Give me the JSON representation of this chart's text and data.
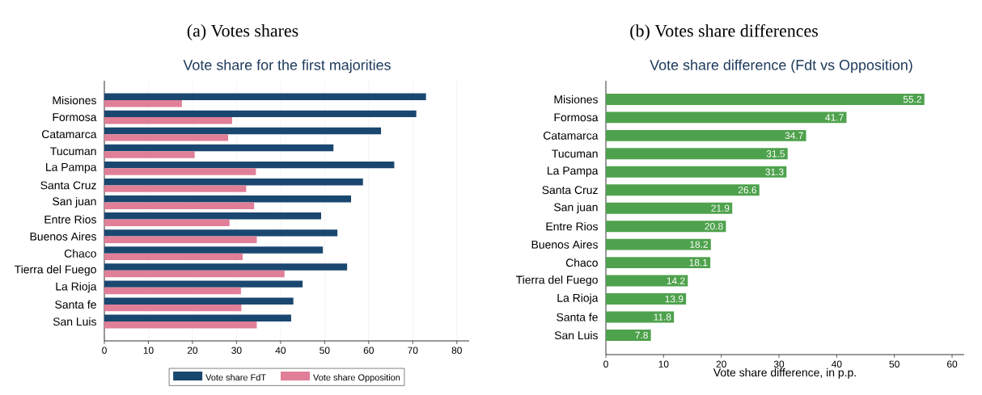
{
  "chart_data": [
    {
      "type": "bar",
      "orientation": "horizontal",
      "title": "(a) Votes shares",
      "subtitle": "Vote share for the first majorities",
      "categories": [
        "Misiones",
        "Formosa",
        "Catamarca",
        "Tucuman",
        "La Pampa",
        "Santa Cruz",
        "San juan",
        "Entre Rios",
        "Buenos Aires",
        "Chaco",
        "Tierra del Fuego",
        "La Rioja",
        "Santa fe",
        "San Luis"
      ],
      "series": [
        {
          "name": "Vote share FdT",
          "color": "#1a476f",
          "values": [
            73.0,
            70.8,
            62.8,
            52.0,
            65.8,
            58.7,
            56.0,
            49.2,
            52.9,
            49.6,
            55.1,
            45.0,
            42.9,
            42.4
          ]
        },
        {
          "name": "Vote share Opposition",
          "color": "#e07f97",
          "values": [
            17.6,
            29.0,
            28.1,
            20.5,
            34.4,
            32.2,
            34.0,
            28.4,
            34.6,
            31.4,
            40.9,
            31.0,
            31.1,
            34.6
          ]
        }
      ],
      "xlim": [
        0,
        82.8
      ],
      "xticks": [
        0,
        10,
        20,
        30,
        40,
        50,
        60,
        70,
        80
      ],
      "grid": "x",
      "legend": "bottom"
    },
    {
      "type": "bar",
      "orientation": "horizontal",
      "title": "(b) Votes share differences",
      "subtitle": "Vote share difference (Fdt vs Opposition)",
      "xlabel": "Vote share difference, in p.p.",
      "categories": [
        "Misiones",
        "Formosa",
        "Catamarca",
        "Tucuman",
        "La Pampa",
        "Santa Cruz",
        "San juan",
        "Entre Rios",
        "Buenos Aires",
        "Chaco",
        "Tierra del Fuego",
        "La Rioja",
        "Santa fe",
        "San Luis"
      ],
      "values": [
        55.2,
        41.7,
        34.7,
        31.5,
        31.3,
        26.6,
        21.9,
        20.8,
        18.2,
        18.1,
        14.2,
        13.9,
        11.8,
        7.8
      ],
      "color": "#4fa24d",
      "xlim": [
        0,
        62.1
      ],
      "xticks": [
        0,
        10,
        20,
        30,
        40,
        50,
        60
      ],
      "data_labels": true
    }
  ]
}
